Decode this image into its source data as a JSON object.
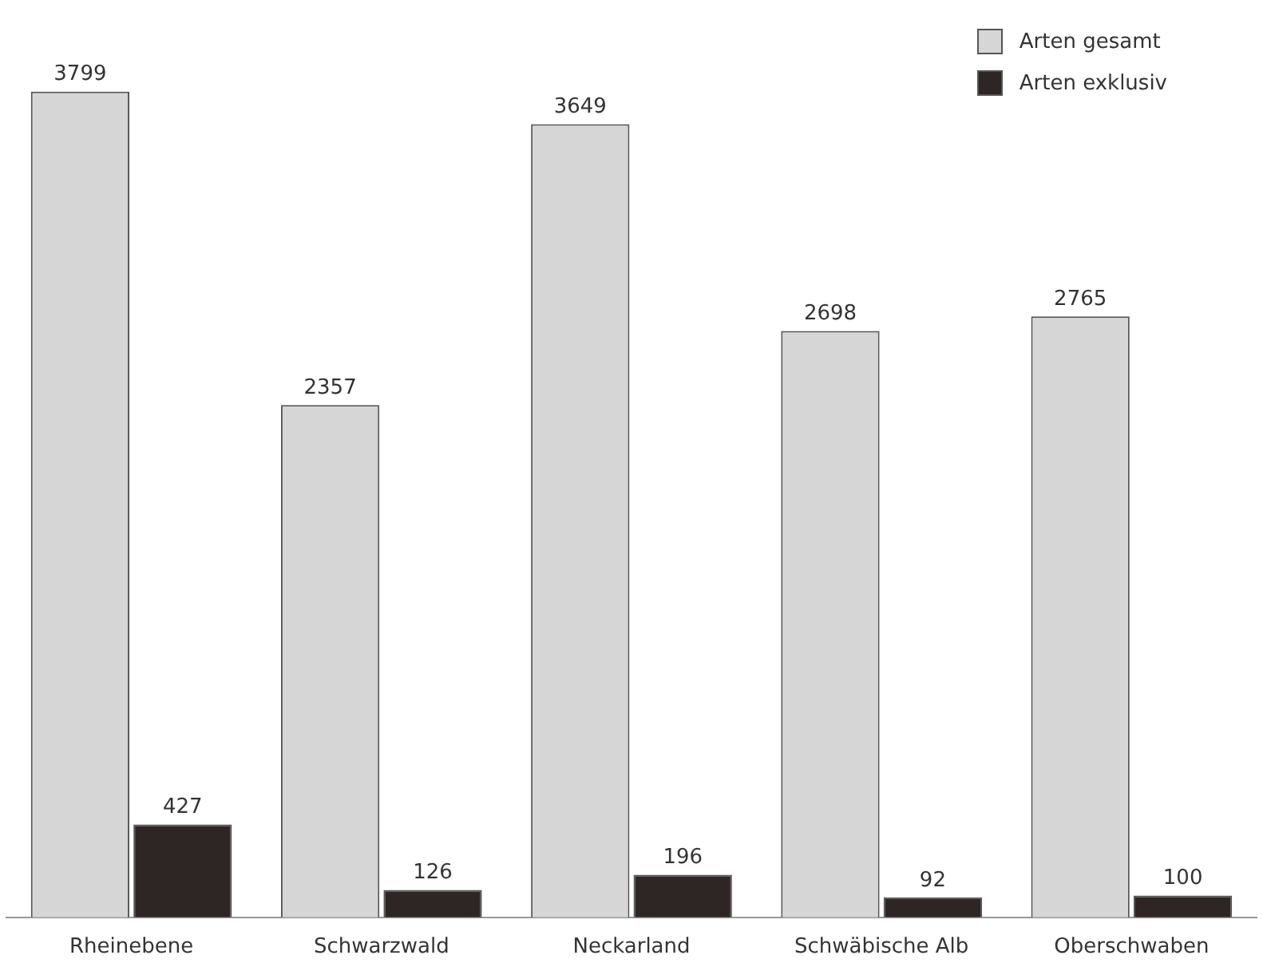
{
  "chart_data": {
    "type": "bar",
    "categories": [
      "Rheinebene",
      "Schwarzwald",
      "Neckarland",
      "Schwäbische Alb",
      "Oberschwaben"
    ],
    "series": [
      {
        "name": "Arten gesamt",
        "color": "#d6d6d6",
        "values": [
          3799,
          2357,
          3649,
          2698,
          2765
        ]
      },
      {
        "name": "Arten exklusiv",
        "color": "#2e2624",
        "values": [
          427,
          126,
          196,
          92,
          100
        ]
      }
    ],
    "data_labels": true,
    "legend": "top right",
    "grid": false
  }
}
